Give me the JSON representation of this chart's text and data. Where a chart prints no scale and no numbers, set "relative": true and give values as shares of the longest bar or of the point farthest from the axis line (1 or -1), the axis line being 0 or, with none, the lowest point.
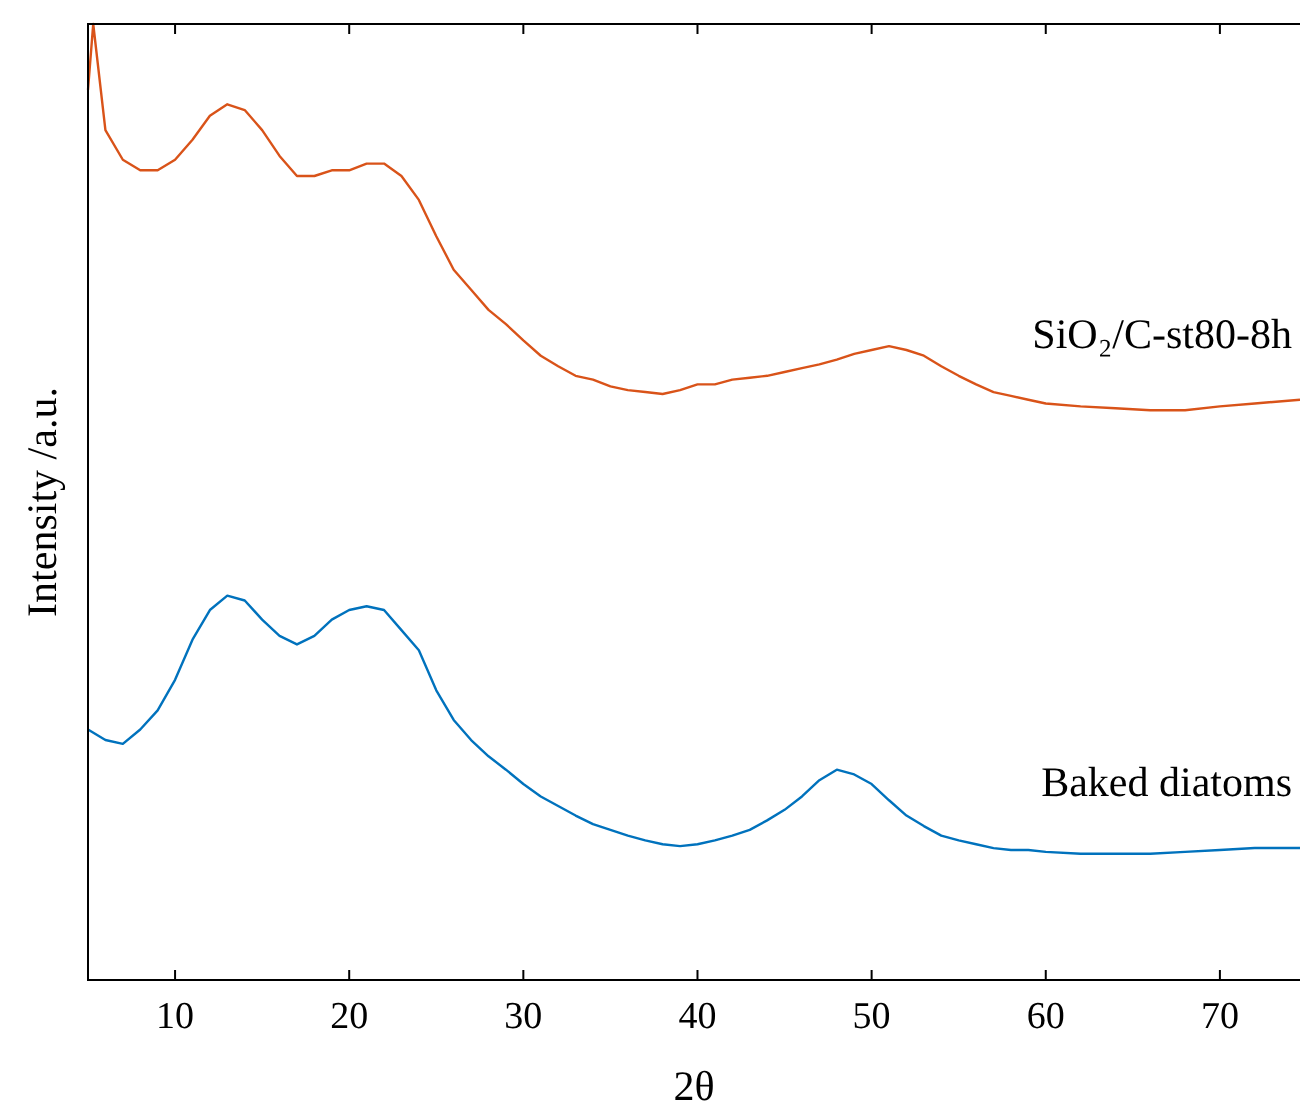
{
  "chart_data": {
    "type": "line",
    "xlabel": "2θ",
    "ylabel": "Intensity /a.u.",
    "relative": true,
    "xlim": [
      5,
      74.6
    ],
    "xticks": [
      10,
      20,
      30,
      40,
      50,
      60,
      70
    ],
    "series": [
      {
        "name": "SiO₂/C-st80-8h",
        "color": "#d95319",
        "x": [
          5,
          5.3,
          6,
          7,
          8,
          9,
          10,
          11,
          12,
          13,
          14,
          15,
          16,
          17,
          18,
          19,
          20,
          21,
          22,
          23,
          24,
          25,
          26,
          27,
          28,
          29,
          30,
          31,
          32,
          33,
          34,
          35,
          36,
          37,
          38,
          39,
          40,
          41,
          42,
          43,
          44,
          45,
          46,
          47,
          48,
          49,
          50,
          51,
          52,
          53,
          54,
          55,
          56,
          57,
          58,
          59,
          60,
          62,
          64,
          66,
          68,
          70,
          72,
          74.6
        ],
        "values": [
          0.931,
          1.0,
          0.889,
          0.858,
          0.847,
          0.847,
          0.858,
          0.879,
          0.904,
          0.916,
          0.91,
          0.889,
          0.862,
          0.841,
          0.841,
          0.847,
          0.847,
          0.854,
          0.854,
          0.841,
          0.816,
          0.778,
          0.743,
          0.722,
          0.701,
          0.686,
          0.669,
          0.653,
          0.642,
          0.632,
          0.628,
          0.621,
          0.617,
          0.615,
          0.613,
          0.617,
          0.623,
          0.623,
          0.628,
          0.63,
          0.632,
          0.636,
          0.64,
          0.644,
          0.649,
          0.655,
          0.659,
          0.663,
          0.659,
          0.653,
          0.642,
          0.632,
          0.623,
          0.615,
          0.611,
          0.607,
          0.603,
          0.6,
          0.598,
          0.596,
          0.596,
          0.6,
          0.603,
          0.607
        ]
      },
      {
        "name": "Baked diatoms",
        "color": "#0072bd",
        "x": [
          5,
          6,
          7,
          8,
          9,
          10,
          11,
          12,
          13,
          14,
          15,
          16,
          17,
          18,
          19,
          20,
          21,
          22,
          23,
          24,
          25,
          26,
          27,
          28,
          29,
          30,
          31,
          32,
          33,
          34,
          35,
          36,
          37,
          38,
          39,
          40,
          41,
          42,
          43,
          44,
          45,
          46,
          47,
          48,
          49,
          50,
          51,
          52,
          53,
          54,
          55,
          56,
          57,
          58,
          59,
          60,
          62,
          64,
          66,
          68,
          70,
          72,
          74.6
        ],
        "values": [
          0.262,
          0.251,
          0.247,
          0.262,
          0.282,
          0.314,
          0.356,
          0.387,
          0.402,
          0.397,
          0.377,
          0.36,
          0.351,
          0.36,
          0.377,
          0.387,
          0.391,
          0.387,
          0.366,
          0.345,
          0.303,
          0.272,
          0.251,
          0.234,
          0.22,
          0.205,
          0.192,
          0.182,
          0.172,
          0.163,
          0.157,
          0.151,
          0.146,
          0.142,
          0.14,
          0.142,
          0.146,
          0.151,
          0.157,
          0.167,
          0.178,
          0.192,
          0.209,
          0.22,
          0.215,
          0.205,
          0.188,
          0.172,
          0.161,
          0.151,
          0.146,
          0.142,
          0.138,
          0.136,
          0.136,
          0.134,
          0.132,
          0.132,
          0.132,
          0.134,
          0.136,
          0.138,
          0.138
        ]
      }
    ]
  }
}
